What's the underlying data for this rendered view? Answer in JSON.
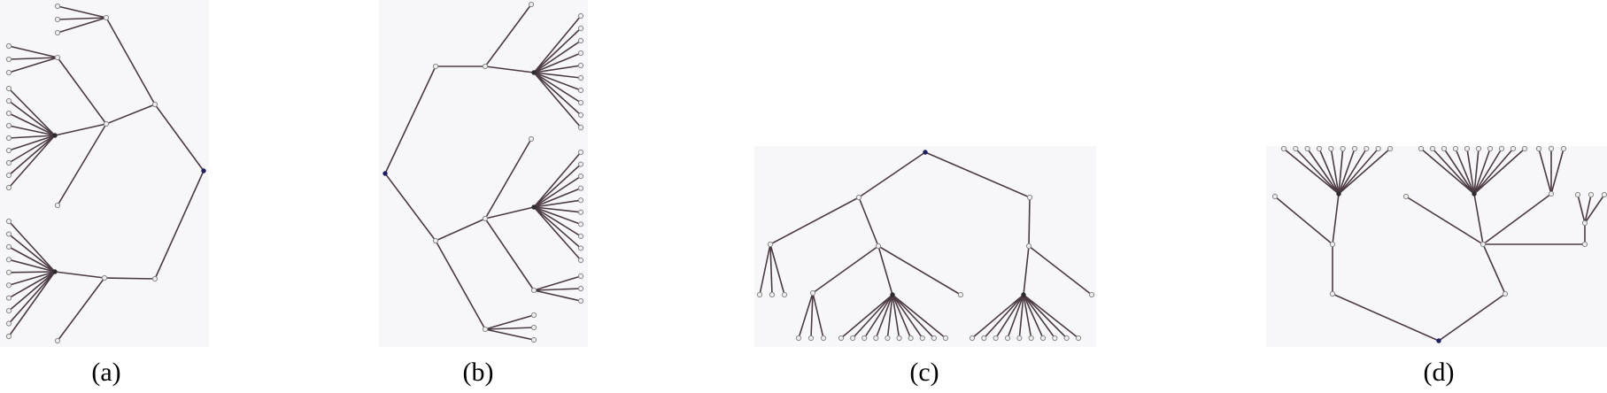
{
  "captions": [
    "(a)",
    "(b)",
    "(c)",
    "(d)"
  ],
  "colors": {
    "edge": "#4b3a44",
    "root": "#1f1f5f",
    "leaf_fill": "#eeeeee",
    "panel": "#f7f7fa"
  }
}
